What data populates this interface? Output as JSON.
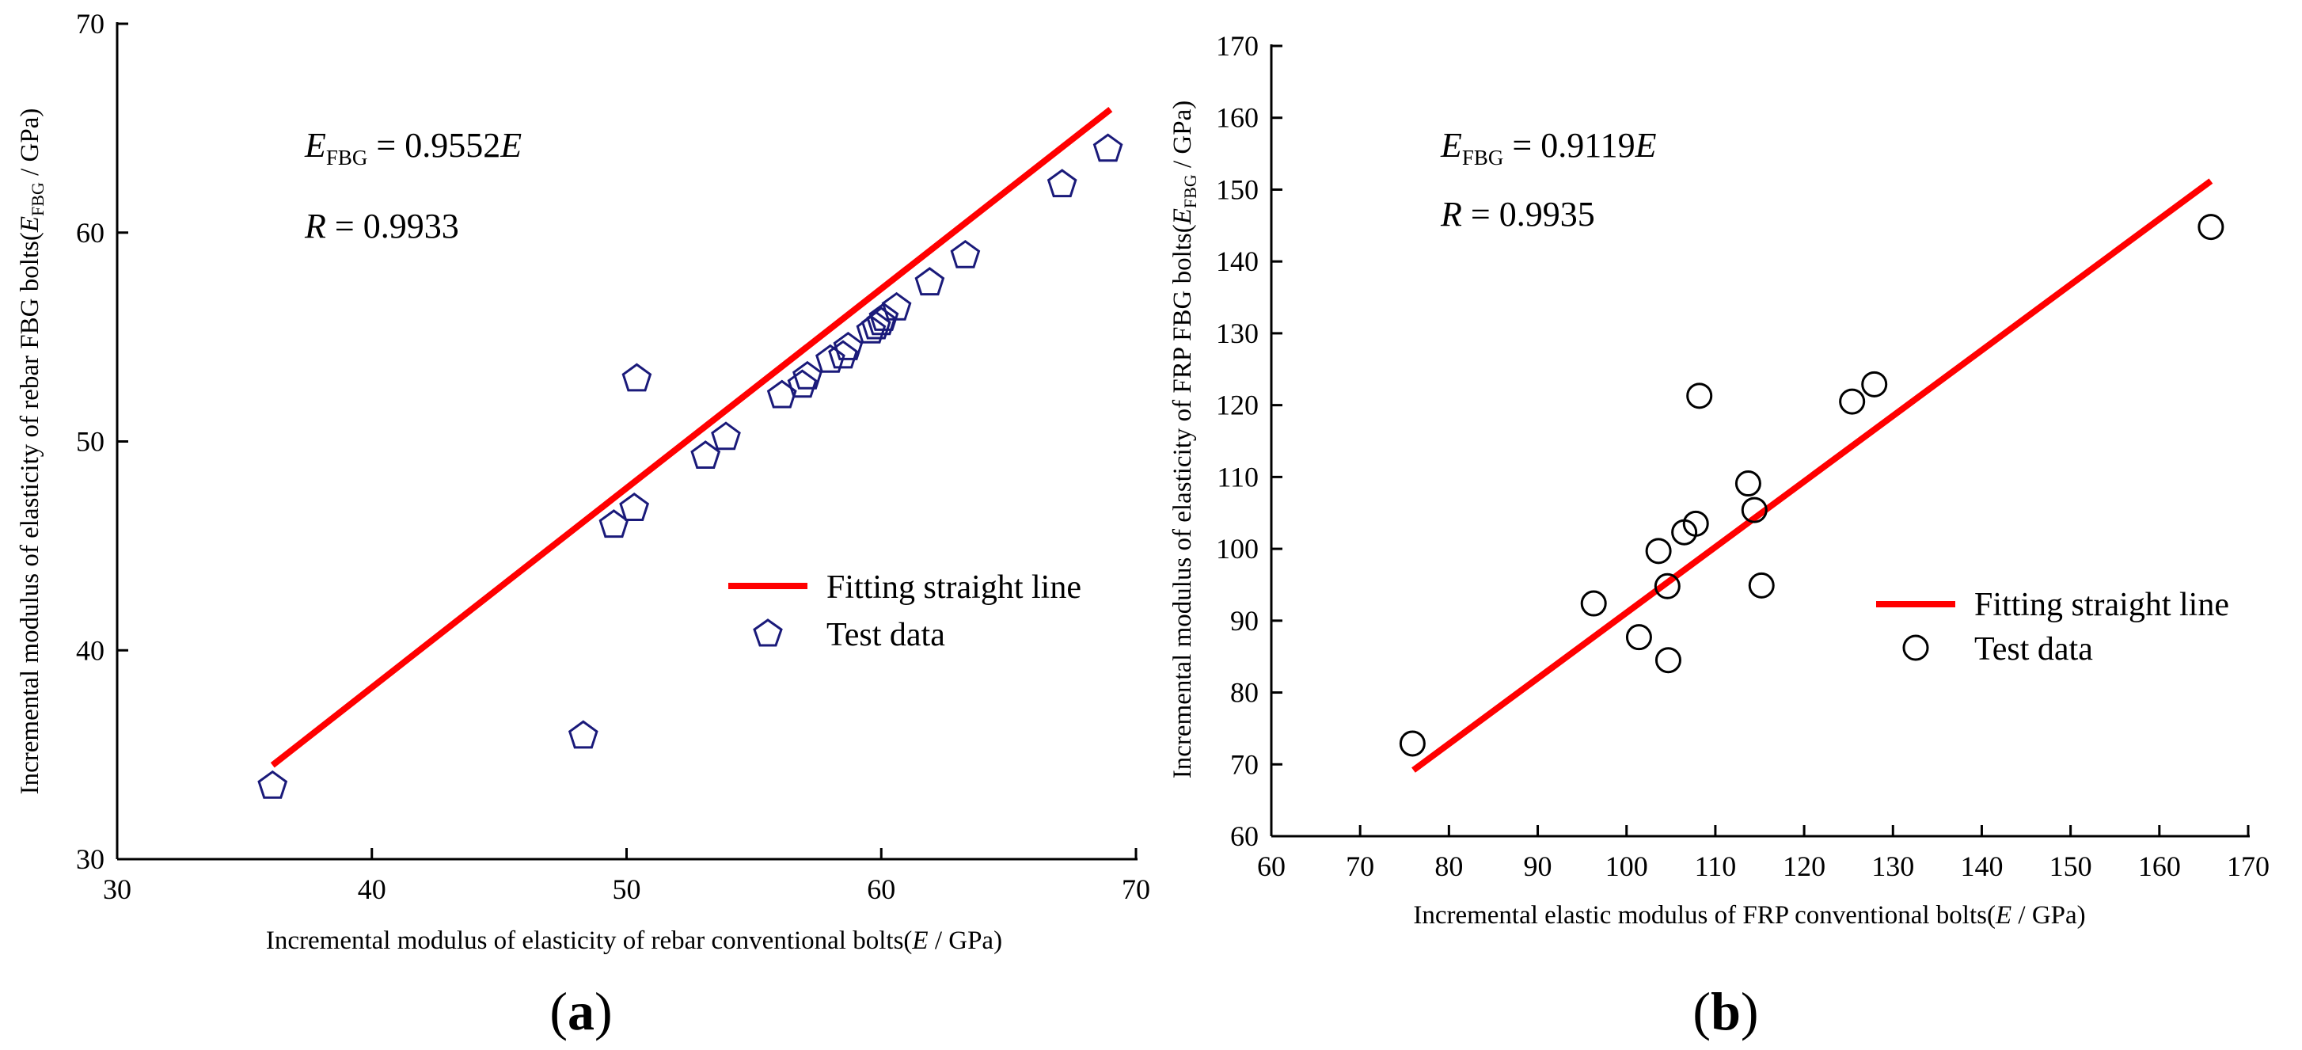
{
  "chart_data": [
    {
      "type": "scatter",
      "panel_label": "(a)",
      "xlabel": "Incremental modulus of elasticity of rebar conventional bolts(E / GPa)",
      "xlabel_parts": {
        "prefix": "Incremental modulus of elasticity of rebar conventional bolts(",
        "var": "E",
        "suffix": " / GPa)"
      },
      "ylabel": "Incremental modulus of elasticity of rebar FBG bolts(EFBG / GPa)",
      "ylabel_parts": {
        "prefix": "Incremental modulus of elasticity of rebar FBG bolts(",
        "var": "E",
        "sub": "FBG",
        "suffix": " / GPa)"
      },
      "xlim": [
        30,
        70
      ],
      "ylim": [
        30,
        70
      ],
      "xticks": [
        "30",
        "40",
        "50",
        "60",
        "70"
      ],
      "yticks": [
        "30",
        "40",
        "50",
        "60",
        "70"
      ],
      "equation": {
        "lhs": "E",
        "lhs_sub": "FBG",
        "rhs": " = 0.9552",
        "rhs_var": "E"
      },
      "r_text": {
        "var": "R",
        "value": " = 0.9933"
      },
      "fit_line": {
        "name": "Fitting straight line",
        "color": "#ff0000",
        "x": [
          36.1,
          69.0
        ],
        "y": [
          34.5,
          65.9
        ]
      },
      "series": {
        "name": "Test data",
        "marker": "pentagon",
        "color": "#1a1a7a",
        "x": [
          36.1,
          48.3,
          49.5,
          50.3,
          50.4,
          53.1,
          53.9,
          56.1,
          56.9,
          57.1,
          58.0,
          58.5,
          58.7,
          59.6,
          59.8,
          60.0,
          60.1,
          60.6,
          61.9,
          63.3,
          67.1,
          68.9
        ],
        "y": [
          33.5,
          35.9,
          46.0,
          46.8,
          53.0,
          49.3,
          50.2,
          52.2,
          52.7,
          53.1,
          53.9,
          54.1,
          54.5,
          55.3,
          55.5,
          55.7,
          55.9,
          56.4,
          57.6,
          58.9,
          62.3,
          64.0
        ]
      },
      "legend": {
        "line_label": "Fitting straight line",
        "marker_label": "Test data",
        "position": "center-right"
      }
    },
    {
      "type": "scatter",
      "panel_label": "(b)",
      "xlabel": "Incremental elastic modulus of FRP conventional bolts(E / GPa)",
      "xlabel_parts": {
        "prefix": "Incremental elastic modulus of FRP conventional bolts(",
        "var": "E",
        "suffix": " / GPa)"
      },
      "ylabel": "Incremental modulus of elasticity of FRP FBG bolts(EFBG / GPa)",
      "ylabel_parts": {
        "prefix": "Incremental modulus of elasticity of FRP FBG bolts(",
        "var": "E",
        "sub": "FBG",
        "suffix": " / GPa)"
      },
      "xlim": [
        60,
        170
      ],
      "ylim": [
        60,
        170
      ],
      "xticks": [
        "60",
        "70",
        "80",
        "90",
        "100",
        "110",
        "120",
        "130",
        "140",
        "150",
        "160",
        "170"
      ],
      "yticks": [
        "60",
        "70",
        "80",
        "90",
        "100",
        "110",
        "120",
        "130",
        "140",
        "150",
        "160",
        "170"
      ],
      "equation": {
        "lhs": "E",
        "lhs_sub": "FBG",
        "rhs": " = 0.9119",
        "rhs_var": "E"
      },
      "r_text": {
        "var": "R",
        "value": " = 0.9935"
      },
      "fit_line": {
        "name": "Fitting straight line",
        "color": "#ff0000",
        "x": [
          76.0,
          165.8
        ],
        "y": [
          69.2,
          151.2
        ]
      },
      "series": {
        "name": "Test data",
        "marker": "circle",
        "color": "#000000",
        "x": [
          75.9,
          96.3,
          101.4,
          103.6,
          104.6,
          104.7,
          106.5,
          107.8,
          108.2,
          113.7,
          114.4,
          115.2,
          125.4,
          127.9,
          165.8
        ],
        "y": [
          72.9,
          92.4,
          87.7,
          99.7,
          94.8,
          84.5,
          102.3,
          103.5,
          121.3,
          109.1,
          105.4,
          94.9,
          120.5,
          122.9,
          144.8
        ]
      },
      "legend": {
        "line_label": "Fitting straight line",
        "marker_label": "Test data",
        "position": "center-right"
      }
    }
  ]
}
